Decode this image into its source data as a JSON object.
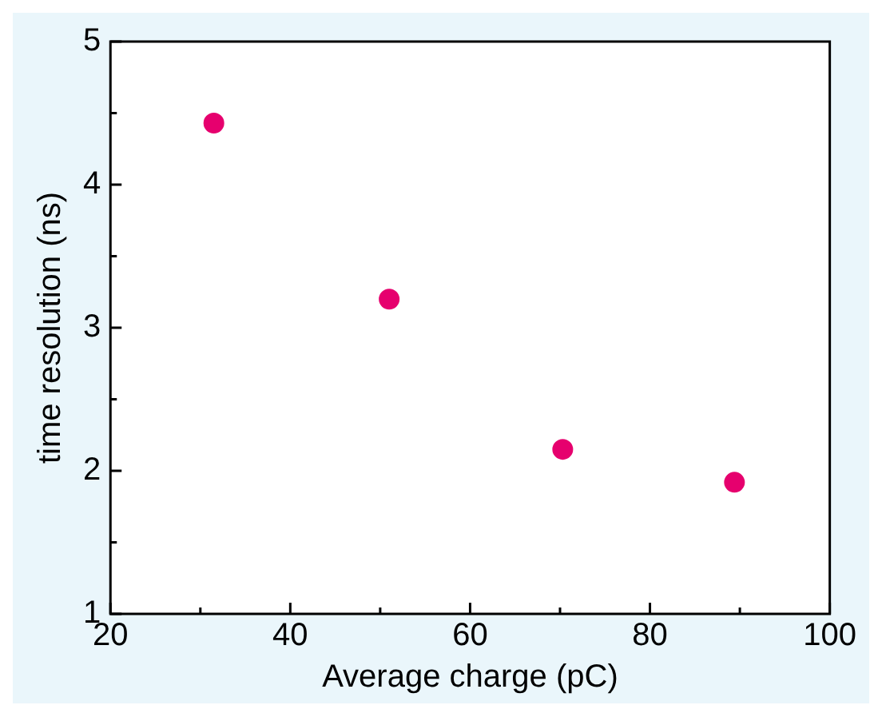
{
  "chart_data": {
    "type": "scatter",
    "xlabel": "Average charge (pC)",
    "ylabel": "time resolution (ns)",
    "x": [
      31.5,
      51,
      70.3,
      89.4
    ],
    "series": [
      {
        "color": "#e6006e",
        "values": [
          4.43,
          3.2,
          2.15,
          1.92
        ]
      }
    ],
    "xlim": [
      20,
      100
    ],
    "xticks": [
      20,
      40,
      60,
      80,
      100
    ],
    "ylim": [
      1,
      5
    ],
    "yticks": [
      1,
      2,
      3,
      4,
      5
    ],
    "grid": false,
    "legend": false,
    "marker": "circle"
  }
}
